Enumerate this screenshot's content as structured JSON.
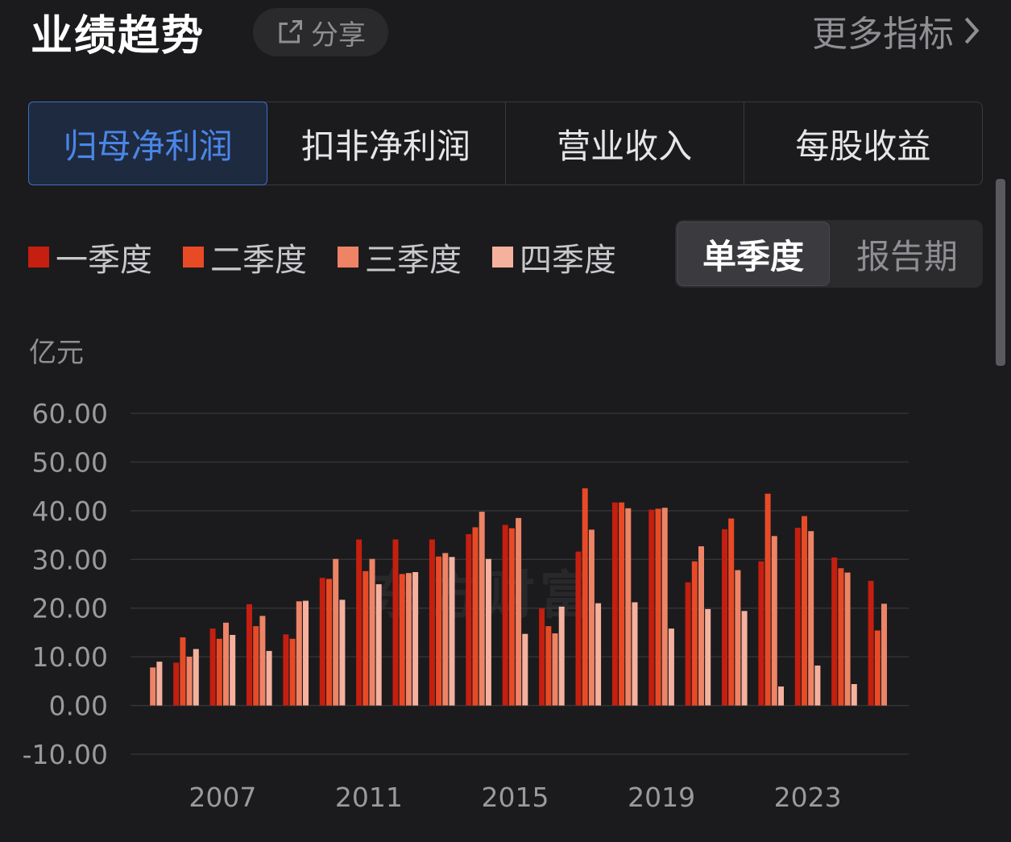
{
  "header": {
    "title": "业绩趋势",
    "share_label": "分享",
    "more_label": "更多指标"
  },
  "tabs": [
    {
      "label": "归母净利润",
      "active": true
    },
    {
      "label": "扣非净利润",
      "active": false
    },
    {
      "label": "营业收入",
      "active": false
    },
    {
      "label": "每股收益",
      "active": false
    }
  ],
  "legend": [
    {
      "label": "一季度",
      "color": "#c41f10"
    },
    {
      "label": "二季度",
      "color": "#e84a26"
    },
    {
      "label": "三季度",
      "color": "#ee8366"
    },
    {
      "label": "四季度",
      "color": "#f6b19e"
    }
  ],
  "toggle": {
    "single_label": "单季度",
    "report_label": "报告期",
    "active": "single"
  },
  "unit_label": "亿元",
  "watermark": "东方财富",
  "accent_color": "#4a86e8",
  "chart_data": {
    "type": "bar",
    "ylim": [
      -10,
      60
    ],
    "yticks": [
      "60.00",
      "50.00",
      "40.00",
      "30.00",
      "20.00",
      "10.00",
      "0.00",
      "-10.00"
    ],
    "year_range": [
      2005,
      2024
    ],
    "xtick_labels": [
      {
        "year": 2007,
        "label": "2007"
      },
      {
        "year": 2011,
        "label": "2011"
      },
      {
        "year": 2015,
        "label": "2015"
      },
      {
        "year": 2019,
        "label": "2019"
      },
      {
        "year": 2023,
        "label": "2023"
      }
    ],
    "series": [
      {
        "name": "一季度",
        "values": [
          null,
          8.8,
          15.8,
          20.8,
          14.6,
          26.2,
          34.1,
          34.1,
          34.1,
          35.2,
          37.1,
          19.9,
          31.6,
          41.7,
          40.2,
          25.3,
          36.2,
          29.6,
          36.5,
          30.4
        ]
      },
      {
        "name": "二季度",
        "values": [
          null,
          14.0,
          13.7,
          16.3,
          13.7,
          26.0,
          27.6,
          27.0,
          30.6,
          36.6,
          36.4,
          16.3,
          44.6,
          41.7,
          40.4,
          29.6,
          38.4,
          43.5,
          38.9,
          28.2
        ]
      },
      {
        "name": "三季度",
        "values": [
          7.8,
          10.0,
          17.0,
          18.4,
          21.4,
          30.1,
          30.1,
          27.2,
          31.3,
          39.8,
          38.5,
          14.8,
          36.1,
          40.5,
          40.6,
          32.7,
          27.8,
          34.8,
          35.8,
          27.3
        ]
      },
      {
        "name": "四季度",
        "values": [
          9.0,
          11.6,
          14.5,
          11.2,
          21.5,
          21.7,
          24.9,
          27.4,
          30.5,
          30.1,
          14.7,
          20.3,
          21.0,
          21.2,
          15.8,
          19.8,
          19.4,
          3.9,
          8.2,
          4.4
        ]
      }
    ],
    "extra_values": [
      {
        "series": "一季度",
        "year": 2025,
        "value": 25.6
      },
      {
        "series": "二季度",
        "year": 2025,
        "value": 15.4
      },
      {
        "series": "三季度",
        "year": 2025,
        "value": 20.9
      }
    ]
  }
}
